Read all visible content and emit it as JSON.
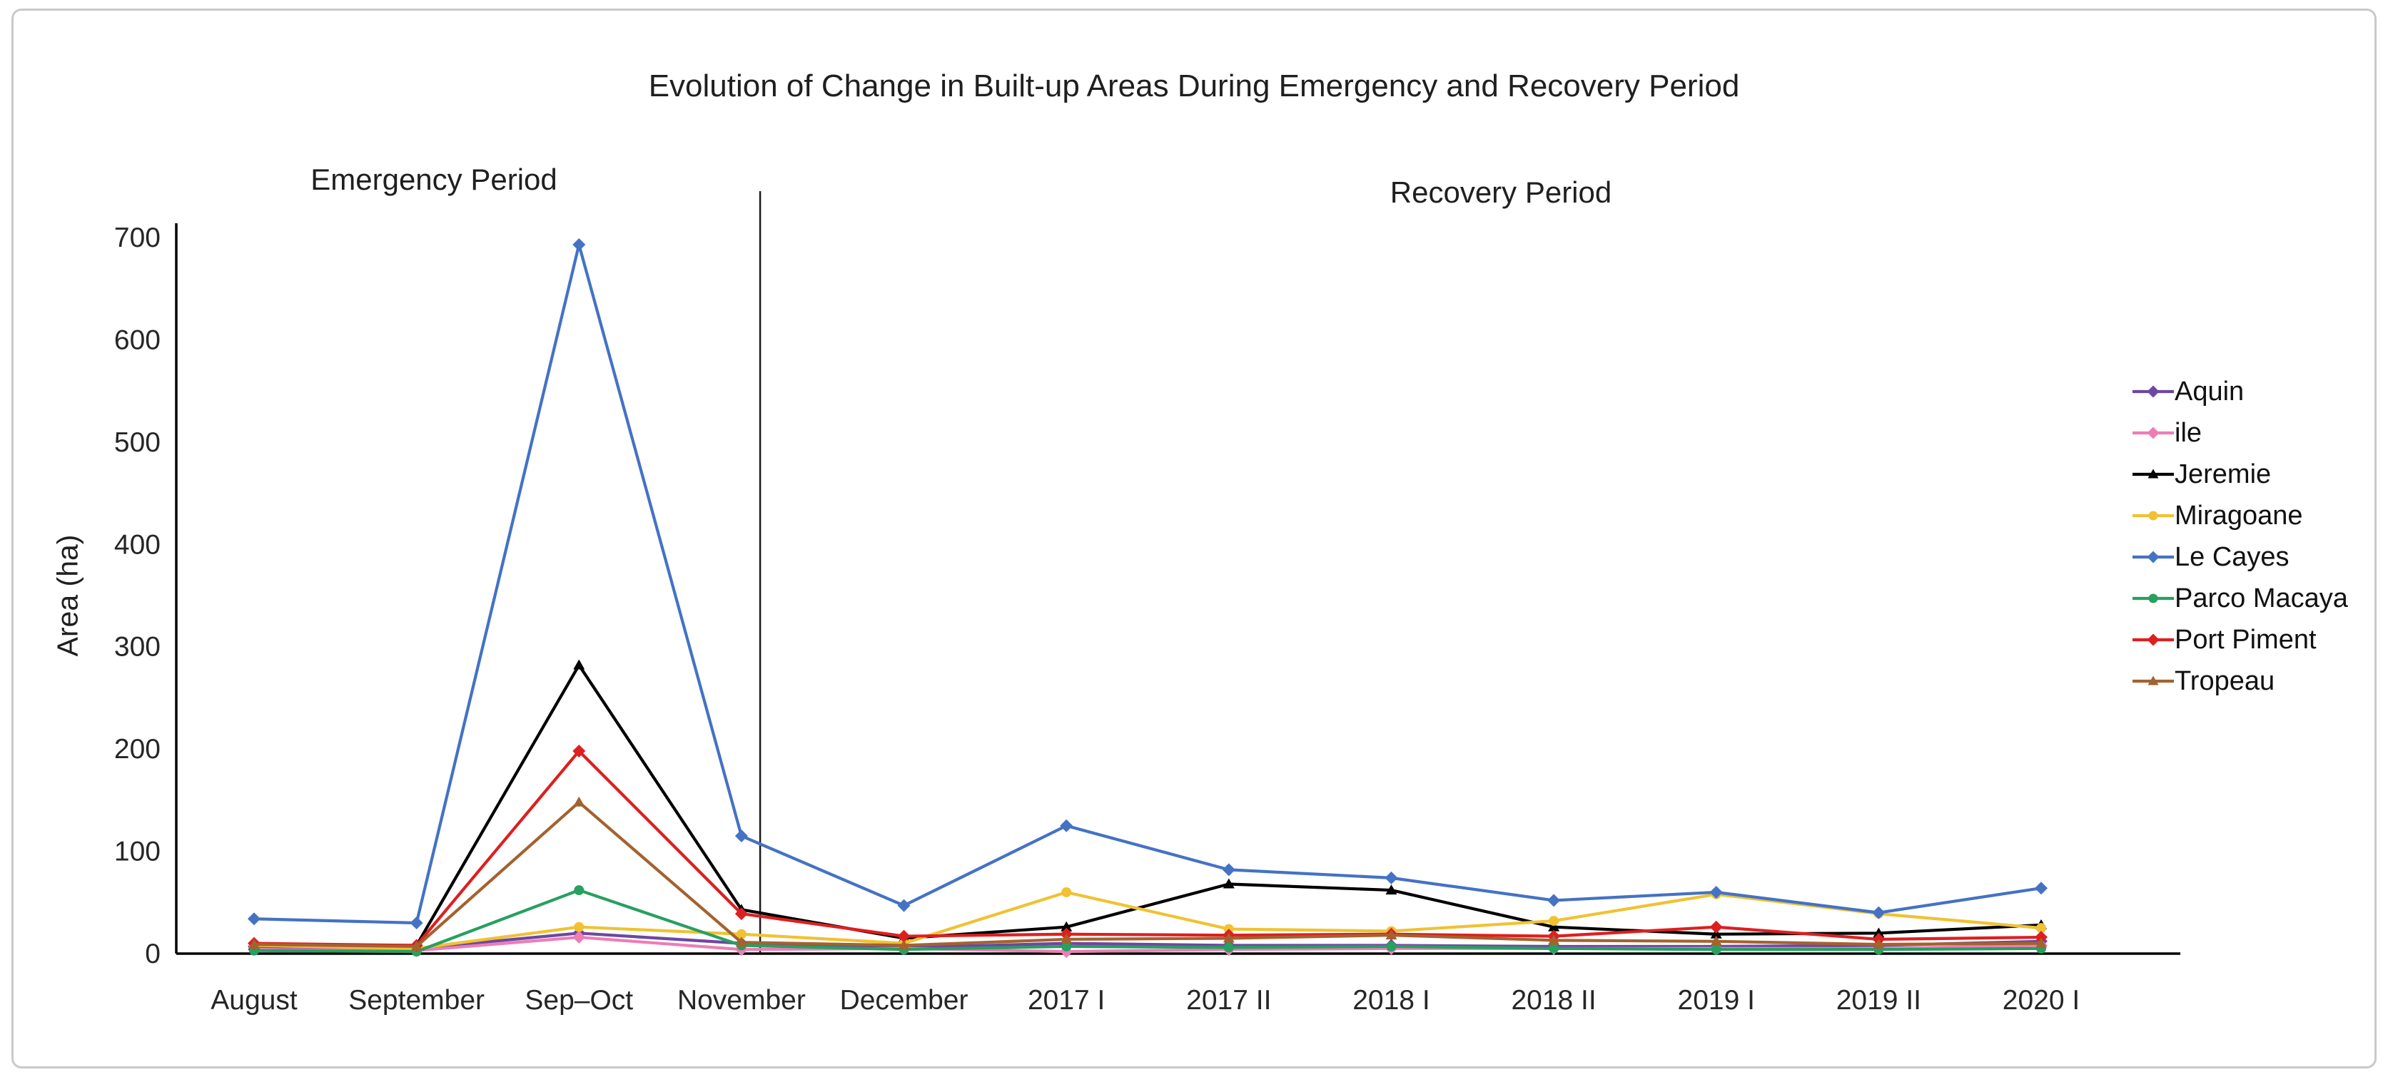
{
  "title": "Evolution of Change in Built-up Areas During Emergency and Recovery Period",
  "annotations": {
    "emergency": "Emergency Period",
    "recovery": "Recovery Period"
  },
  "y_axis": {
    "title": "Area (ha)"
  },
  "chart_data": {
    "type": "line",
    "title": "Evolution of Change in Built-up Areas During Emergency and Recovery Period",
    "xlabel": "",
    "ylabel": "Area (ha)",
    "ylim": [
      0,
      700
    ],
    "yticks": [
      0,
      100,
      200,
      300,
      400,
      500,
      600,
      700
    ],
    "grid": false,
    "legend_position": "right",
    "divider_after_category": "November",
    "categories": [
      "August",
      "September",
      "Sep–Oct",
      "November",
      "December",
      "2017 I",
      "2017 II",
      "2018 I",
      "2018 II",
      "2019 I",
      "2019 II",
      "2020 I"
    ],
    "series": [
      {
        "name": "Aquin",
        "color": "#6f46a2",
        "marker": "diamond",
        "values": [
          7,
          5,
          20,
          10,
          6,
          10,
          8,
          8,
          7,
          7,
          8,
          12
        ]
      },
      {
        "name": "ile",
        "color": "#ec7eb5",
        "marker": "diamond",
        "values": [
          4,
          3,
          16,
          4,
          5,
          2,
          4,
          5,
          5,
          5,
          5,
          8
        ]
      },
      {
        "name": "Jeremie",
        "color": "#000000",
        "marker": "triangle",
        "values": [
          8,
          8,
          282,
          43,
          15,
          26,
          68,
          62,
          26,
          19,
          20,
          28
        ]
      },
      {
        "name": "Miragoane",
        "color": "#f0c232",
        "marker": "circle",
        "values": [
          8,
          5,
          26,
          19,
          10,
          60,
          24,
          22,
          32,
          58,
          39,
          25
        ]
      },
      {
        "name": "Le Cayes",
        "color": "#4472c4",
        "marker": "diamond",
        "values": [
          34,
          30,
          693,
          115,
          47,
          125,
          82,
          74,
          52,
          60,
          40,
          64
        ]
      },
      {
        "name": "Parco Macaya",
        "color": "#27a060",
        "marker": "circle",
        "values": [
          3,
          2,
          62,
          8,
          4,
          7,
          6,
          7,
          5,
          4,
          4,
          5
        ]
      },
      {
        "name": "Port Piment",
        "color": "#de1f1f",
        "marker": "diamond",
        "values": [
          10,
          8,
          198,
          39,
          17,
          19,
          18,
          19,
          17,
          26,
          14,
          16
        ]
      },
      {
        "name": "Tropeau",
        "color": "#a4622f",
        "marker": "triangle",
        "values": [
          9,
          7,
          148,
          11,
          8,
          14,
          15,
          18,
          13,
          12,
          9,
          10
        ]
      }
    ],
    "colors": {
      "axis": "#000000",
      "divider": "#1a1a1a",
      "tick_text": "#262626",
      "frame_border": "#c9c9c9"
    }
  }
}
